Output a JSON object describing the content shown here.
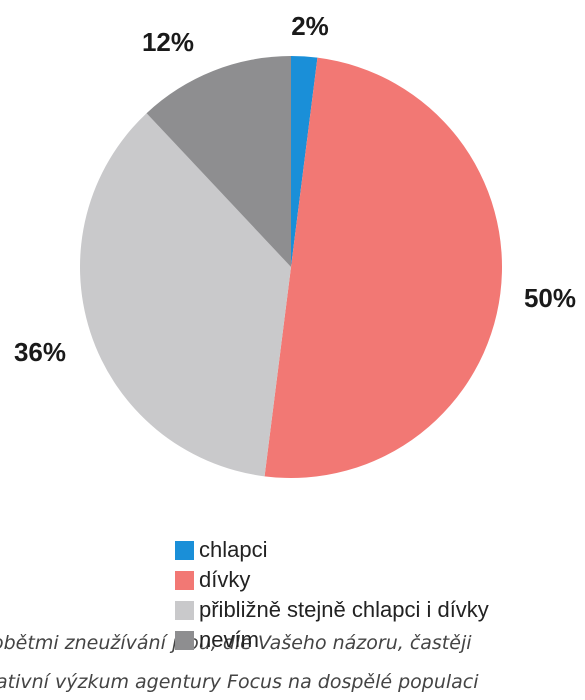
{
  "chart_data": {
    "type": "pie",
    "title": "",
    "categories": [
      "chlapci",
      "dívky",
      "přibližně stejně chlapci i dívky",
      "nevím"
    ],
    "values": [
      2,
      50,
      36,
      12
    ],
    "value_labels": [
      "2%",
      "50%",
      "36%",
      "12%"
    ],
    "colors": [
      "#1a8fd8",
      "#f27874",
      "#c9c9cb",
      "#8e8e90"
    ],
    "start_angle": 0,
    "direction": "clockwise",
    "legend_position": "bottom"
  },
  "captions": {
    "line1": "obětmi zneužívání jsou, dle Vašeho názoru, častěji",
    "line2": "ativní výzkum agentury Focus na dospělé populaci"
  }
}
